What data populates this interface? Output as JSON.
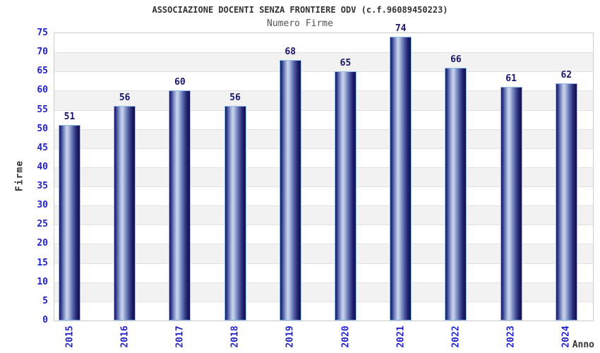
{
  "chart_data": {
    "type": "bar",
    "title": "ASSOCIAZIONE DOCENTI SENZA FRONTIERE ODV (c.f.96089450223)",
    "subtitle": "Numero Firme",
    "xlabel": "Anno",
    "ylabel": "Firme",
    "categories": [
      "2015",
      "2016",
      "2017",
      "2018",
      "2019",
      "2020",
      "2021",
      "2022",
      "2023",
      "2024"
    ],
    "values": [
      51,
      56,
      60,
      56,
      68,
      65,
      74,
      66,
      61,
      62
    ],
    "ylim": [
      0,
      75
    ],
    "ytick_step": 5,
    "grid": true,
    "legend": "none",
    "value_labels_shown": true,
    "colors": {
      "title": "#333333",
      "subtitle": "#555555",
      "axis_tick_labels": "#2222cc",
      "axis_titles": "#333333",
      "value_labels": "#16166b",
      "bar_border": "#8fbce8",
      "band_white": "#ffffff",
      "band_gray": "#f2f2f2",
      "gridline": "#e2e2e2",
      "plot_border": "#cccccc",
      "bar_gradient_stops": [
        "#181865",
        "#2f3a88",
        "#7d8cc2",
        "#c9d4ec",
        "#b7c3e4",
        "#8494c6",
        "#4a569e",
        "#23236f",
        "#10104c"
      ],
      "bar_gradient_positions": [
        0,
        8,
        22,
        36,
        44,
        55,
        70,
        85,
        100
      ]
    }
  }
}
